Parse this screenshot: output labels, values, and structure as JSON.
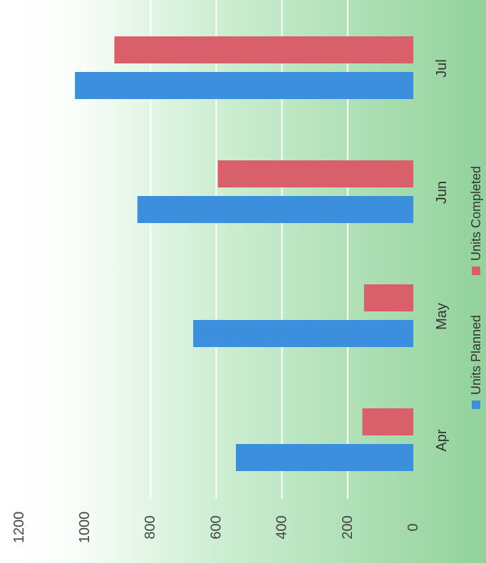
{
  "chart_data": {
    "type": "bar",
    "orientation": "horizontal",
    "categories": [
      "Apr",
      "May",
      "Jun",
      "Jul"
    ],
    "series": [
      {
        "name": "Units Planned",
        "values": [
          540,
          670,
          840,
          1030
        ],
        "color": "#3b8fdc"
      },
      {
        "name": "Units Completed",
        "values": [
          155,
          150,
          595,
          910
        ],
        "color": "#d9606a"
      }
    ],
    "xlim": [
      0,
      1200
    ],
    "ticks": [
      0,
      200,
      400,
      600,
      800,
      1000,
      1200
    ],
    "grid": true,
    "legend": "right",
    "title": "",
    "xlabel": "",
    "ylabel": ""
  },
  "colors": {
    "background_light": "#ffffff",
    "background_green": "#9fd9a6",
    "gridline": "#ffffff"
  }
}
